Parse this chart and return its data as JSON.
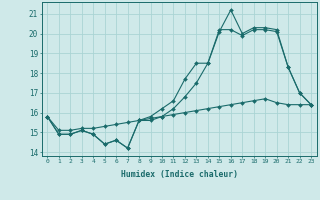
{
  "xlabel": "Humidex (Indice chaleur)",
  "background_color": "#cfe9e9",
  "grid_color": "#aad4d4",
  "line_color": "#1a6b6b",
  "xlim": [
    -0.5,
    23.5
  ],
  "ylim": [
    13.8,
    21.6
  ],
  "yticks": [
    14,
    15,
    16,
    17,
    18,
    19,
    20,
    21
  ],
  "xticks": [
    0,
    1,
    2,
    3,
    4,
    5,
    6,
    7,
    8,
    9,
    10,
    11,
    12,
    13,
    14,
    15,
    16,
    17,
    18,
    19,
    20,
    21,
    22,
    23
  ],
  "series": [
    [
      15.8,
      14.9,
      14.9,
      15.1,
      14.9,
      14.4,
      14.6,
      14.2,
      15.6,
      15.8,
      16.2,
      16.6,
      17.7,
      18.5,
      18.5,
      20.1,
      21.2,
      20.0,
      20.3,
      20.3,
      20.2,
      18.3,
      17.0,
      16.4
    ],
    [
      15.8,
      14.9,
      14.9,
      15.1,
      14.9,
      14.4,
      14.6,
      14.2,
      15.6,
      15.6,
      15.8,
      16.2,
      16.8,
      17.5,
      18.5,
      20.2,
      20.2,
      19.9,
      20.2,
      20.2,
      20.1,
      18.3,
      17.0,
      16.4
    ],
    [
      15.8,
      15.1,
      15.1,
      15.2,
      15.2,
      15.3,
      15.4,
      15.5,
      15.6,
      15.7,
      15.8,
      15.9,
      16.0,
      16.1,
      16.2,
      16.3,
      16.4,
      16.5,
      16.6,
      16.7,
      16.5,
      16.4,
      16.4,
      16.4
    ]
  ]
}
